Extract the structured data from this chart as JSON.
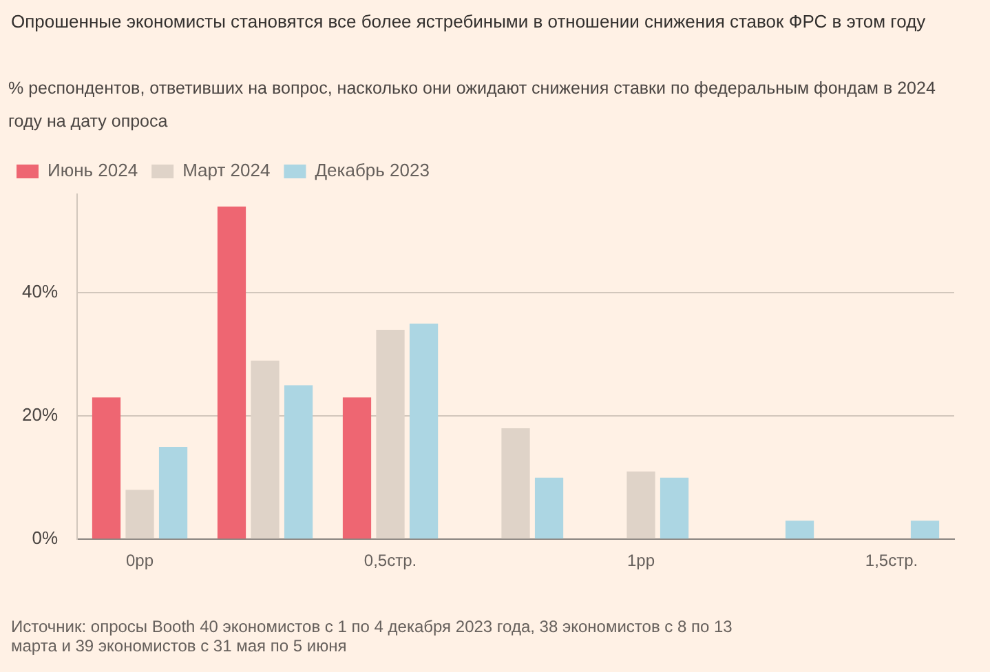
{
  "chart_data": {
    "type": "bar",
    "title": "Опрошенные экономисты становятся все более ястребиными в отношении снижения ставок ФРС в этом году",
    "subtitle": "% респондентов, ответивших на вопрос, насколько они ожидают снижения ставки по федеральным фондам в 2024 году на дату опроса",
    "categories": [
      "0рр",
      null,
      "0,5стр.",
      null,
      "1рр",
      null,
      "1,5стр."
    ],
    "series": [
      {
        "name": "Июнь 2024",
        "color": "#ee6672",
        "values": [
          23,
          54,
          23,
          0,
          0,
          0,
          0
        ]
      },
      {
        "name": "Март 2024",
        "color": "#dfd3c8",
        "values": [
          8,
          29,
          34,
          18,
          11,
          0,
          0
        ]
      },
      {
        "name": "Декабрь 2023",
        "color": "#acd6e3",
        "values": [
          15,
          25,
          35,
          10,
          10,
          3,
          3
        ]
      }
    ],
    "yticks": [
      {
        "value": 0,
        "label": "0%"
      },
      {
        "value": 20,
        "label": "20%"
      },
      {
        "value": 40,
        "label": "40%"
      }
    ],
    "ylim": [
      0,
      56
    ],
    "grid": "y",
    "legend": "top left",
    "annotations": [
      "Источник: опросы Booth 40 экономистов с 1 по 4 декабря 2023 года, 38 экономистов с 8 по 13 марта и 39 экономистов с 31 мая по 5 июня"
    ]
  }
}
